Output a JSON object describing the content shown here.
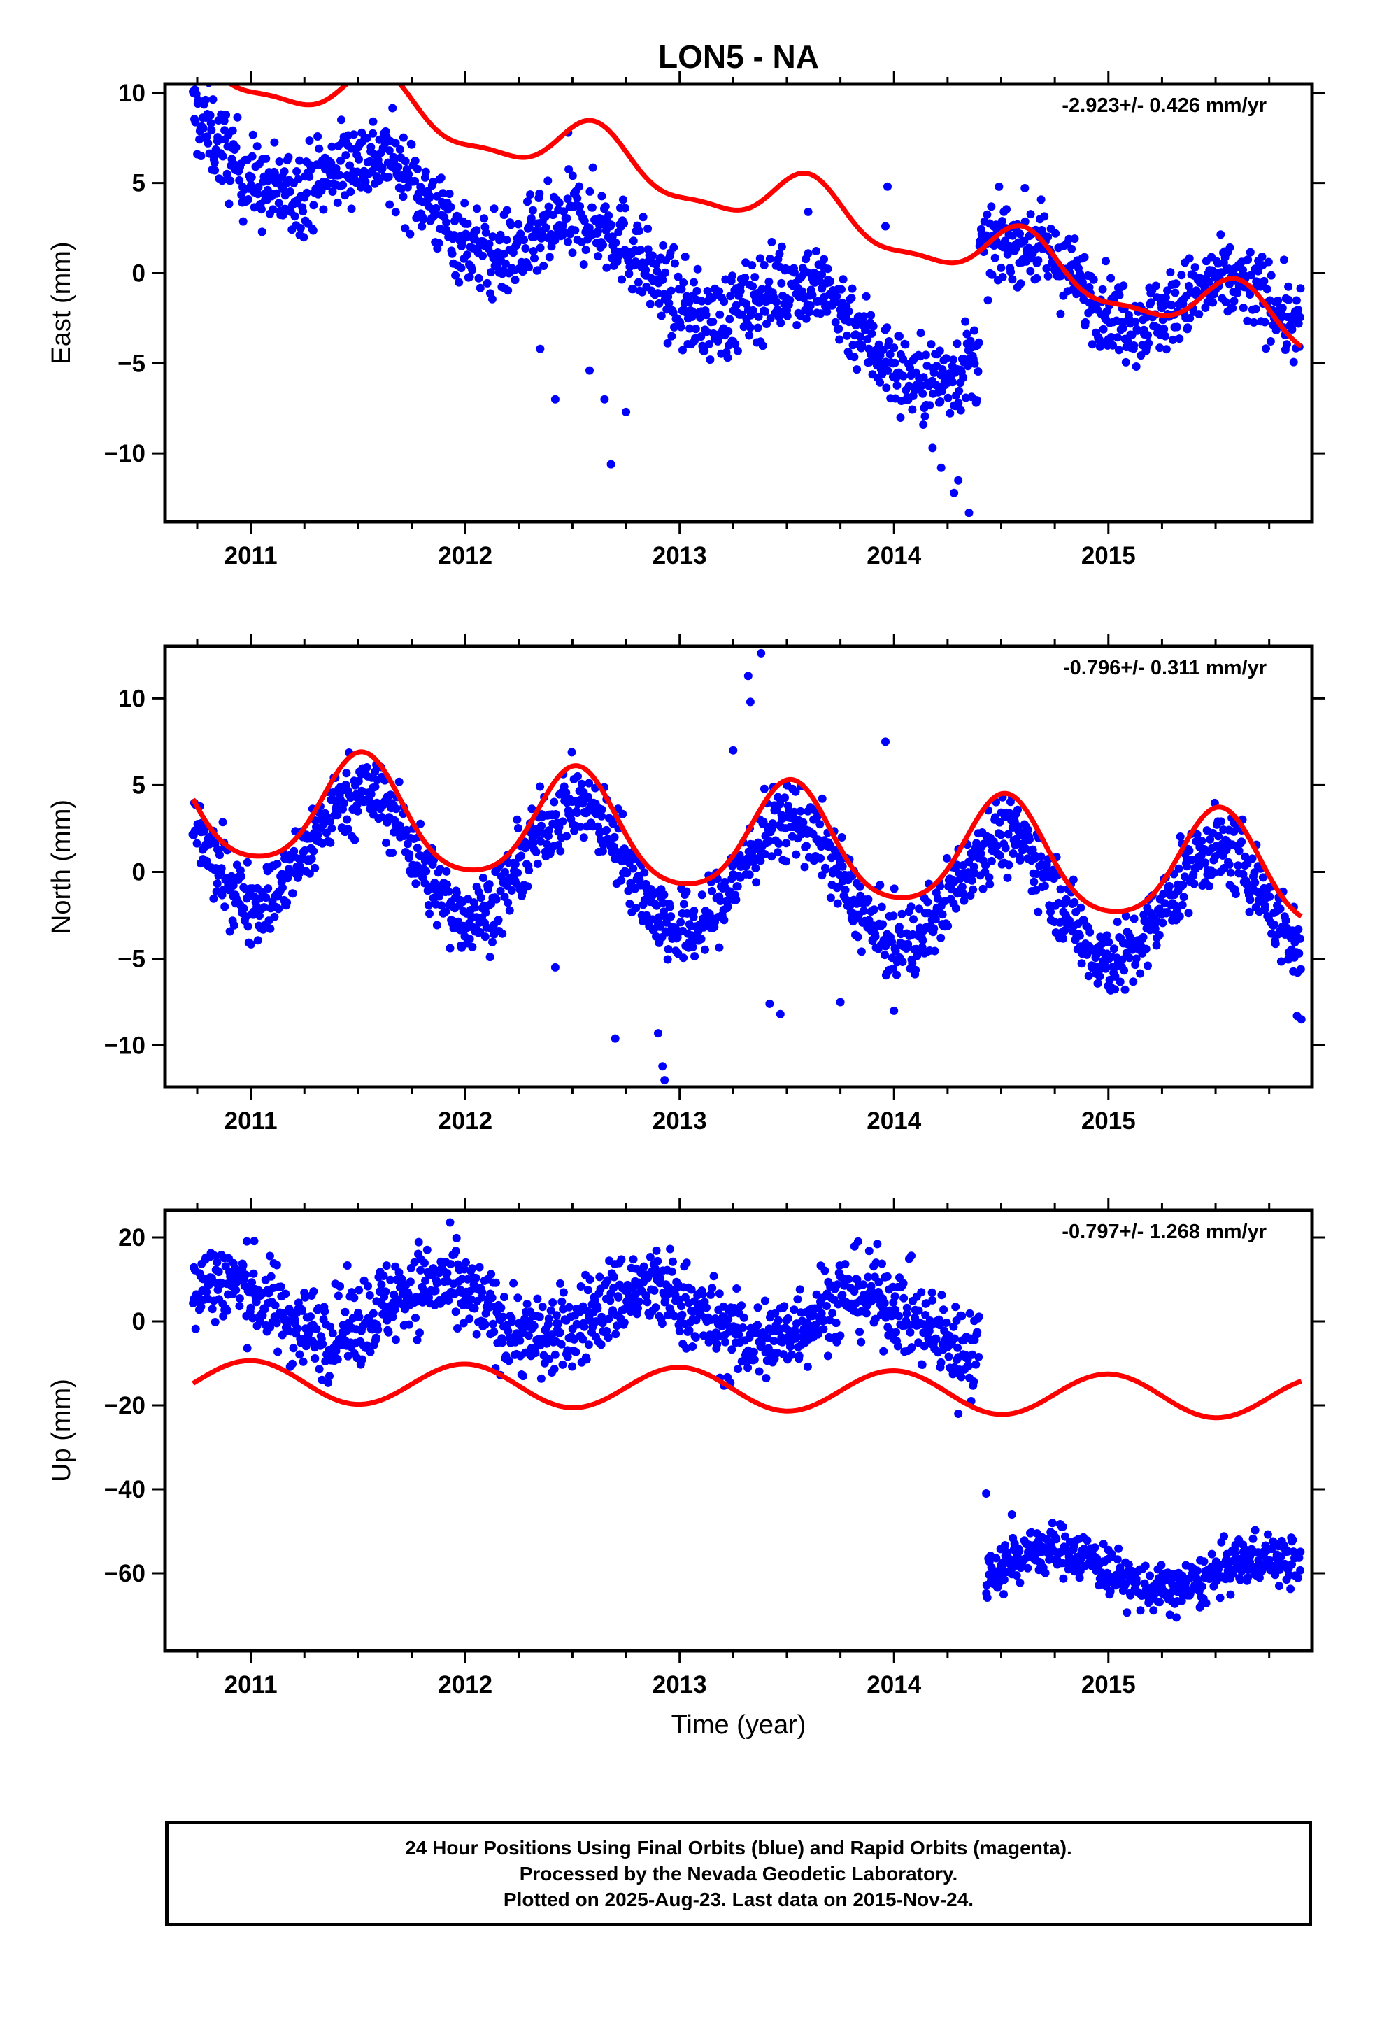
{
  "title": "LON5 - NA",
  "xlabel": "Time (year)",
  "colors": {
    "data": "#0000ff",
    "model": "#ff0000",
    "frame": "#000000"
  },
  "footer": {
    "line1": "24 Hour Positions Using Final Orbits (blue) and Rapid Orbits (magenta).",
    "line2": "Processed by the Nevada Geodetic Laboratory.",
    "line3": "Plotted on 2025-Aug-23. Last data on 2015-Nov-24."
  },
  "chart_data": [
    {
      "type": "scatter",
      "ylabel": "East (mm)",
      "rate_text": "-2.923+/- 0.426 mm/yr",
      "xlim": [
        2010.6,
        2015.95
      ],
      "ylim": [
        -13.8,
        10.5
      ],
      "xticks": [
        2011,
        2012,
        2013,
        2014,
        2015
      ],
      "yticks": [
        10,
        5,
        0,
        -5,
        -10
      ],
      "ytick_labels": [
        "10",
        "5",
        "0",
        "−5",
        "−10"
      ],
      "data_span": [
        2010.73,
        2015.9
      ],
      "model": {
        "slope": -2.923,
        "offset": 4.4,
        "annual_amp": 1.5,
        "annual_phase_peak": 0.6,
        "semiannual_amp": 0.5
      },
      "data_series": [
        {
          "from": 2010.73,
          "to": 2014.4,
          "trend_start": 7.6,
          "trend_end": -5.2,
          "annual_amp": 1.8,
          "noise": 1.2
        },
        {
          "from": 2014.4,
          "to": 2015.9,
          "trend_start": 0.6,
          "trend_end": -2.8,
          "annual_amp": 1.6,
          "noise": 1.1
        }
      ],
      "outliers": [
        [
          2012.35,
          -4.2
        ],
        [
          2012.42,
          -7.0
        ],
        [
          2012.48,
          7.8
        ],
        [
          2012.58,
          -5.4
        ],
        [
          2012.65,
          -7.0
        ],
        [
          2012.68,
          -10.6
        ],
        [
          2012.75,
          -7.7
        ],
        [
          2013.6,
          3.4
        ],
        [
          2013.97,
          4.8
        ],
        [
          2013.96,
          2.6
        ],
        [
          2014.3,
          -11.5
        ],
        [
          2014.35,
          -13.3
        ],
        [
          2014.28,
          -12.2
        ],
        [
          2014.22,
          -10.8
        ],
        [
          2014.18,
          -9.7
        ]
      ]
    },
    {
      "type": "scatter",
      "ylabel": "North (mm)",
      "rate_text": "-0.796+/- 0.311 mm/yr",
      "xlim": [
        2010.6,
        2015.95
      ],
      "ylim": [
        -12.4,
        13.0
      ],
      "xticks": [
        2011,
        2012,
        2013,
        2014,
        2015
      ],
      "yticks": [
        10,
        5,
        0,
        -5,
        -10
      ],
      "ytick_labels": [
        "10",
        "5",
        "0",
        "−5",
        "−10"
      ],
      "data_span": [
        2010.73,
        2015.9
      ],
      "model": {
        "slope": -0.796,
        "offset": 1.8,
        "annual_amp": 3.2,
        "annual_phase_peak": 0.52,
        "semiannual_amp": 0.5
      },
      "data_series": [
        {
          "from": 2010.73,
          "to": 2015.9,
          "trend_start": 1.9,
          "trend_end": -2.4,
          "annual_amp": 3.4,
          "noise": 1.1
        }
      ],
      "outliers": [
        [
          2012.9,
          -9.3
        ],
        [
          2012.92,
          -11.2
        ],
        [
          2012.93,
          -12.0
        ],
        [
          2012.7,
          -9.6
        ],
        [
          2013.32,
          11.3
        ],
        [
          2013.38,
          12.6
        ],
        [
          2013.33,
          9.8
        ],
        [
          2013.25,
          7.0
        ],
        [
          2013.42,
          -7.6
        ],
        [
          2013.47,
          -8.2
        ],
        [
          2013.96,
          7.5
        ],
        [
          2014.0,
          -8.0
        ],
        [
          2015.88,
          -8.3
        ],
        [
          2015.9,
          -8.5
        ],
        [
          2013.75,
          -7.5
        ],
        [
          2012.42,
          -5.5
        ]
      ]
    },
    {
      "type": "scatter",
      "ylabel": "Up (mm)",
      "rate_text": "-0.797+/- 1.268 mm/yr",
      "xlim": [
        2010.6,
        2015.95
      ],
      "ylim": [
        -78.5,
        26.5
      ],
      "xticks": [
        2011,
        2012,
        2013,
        2014,
        2015
      ],
      "yticks": [
        20,
        0,
        -20,
        -40,
        -60
      ],
      "ytick_labels": [
        "20",
        "0",
        "−20",
        "−40",
        "−60"
      ],
      "data_span": [
        2010.73,
        2015.9
      ],
      "model": {
        "slope": -0.797,
        "offset": -16.2,
        "annual_amp": 5.0,
        "annual_phase_peak": 0.0,
        "semiannual_amp": 0.0
      },
      "data_series": [
        {
          "from": 2010.73,
          "to": 2014.4,
          "trend_start": 4.0,
          "trend_end": 0.0,
          "annual_amp": 6.0,
          "noise": 5.2,
          "annual_phase_peak": 0.85
        },
        {
          "from": 2014.43,
          "to": 2015.9,
          "trend_start": -58.0,
          "trend_end": -61.0,
          "annual_amp": 4.5,
          "noise": 3.0,
          "annual_phase_peak": 0.75
        }
      ],
      "outliers": [
        [
          2014.43,
          -41.0
        ],
        [
          2014.55,
          -46.0
        ],
        [
          2014.3,
          -22.0
        ],
        [
          2014.36,
          -19.0
        ]
      ]
    }
  ]
}
